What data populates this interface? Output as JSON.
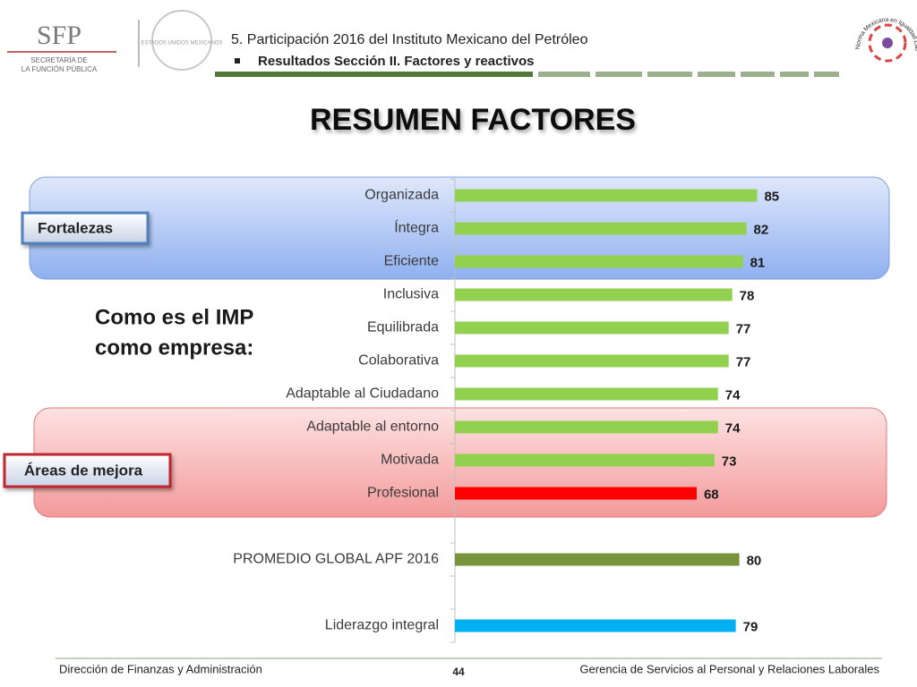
{
  "header": {
    "logo_text": "SFP",
    "logo_line1": "SECRETARÍA DE",
    "logo_line2": "LA FUNCIÓN PÚBLICA",
    "seal_text": "ESTADOS UNIDOS MEXICANOS",
    "section": "5. Participación 2016 del Instituto Mexicano del Petróleo",
    "subsection": "Resultados Sección II. Factores y reactivos",
    "badge_text": "Norma Mexicana en Igualdad Laboral y No Discriminación"
  },
  "chart_data": {
    "type": "bar",
    "orientation": "horizontal",
    "title": "RESUMEN FACTORES",
    "categories": [
      "Organizada",
      "Íntegra",
      "Eficiente",
      "Inclusiva",
      "Equilibrada",
      "Colaborativa",
      "Adaptable al Ciudadano",
      "Adaptable al entorno",
      "Motivada",
      "Profesional",
      null,
      "PROMEDIO GLOBAL APF   2016",
      null,
      "Liderazgo integral"
    ],
    "values": [
      85,
      82,
      81,
      78,
      77,
      77,
      74,
      74,
      73,
      68,
      null,
      80,
      null,
      79
    ],
    "colors": [
      "#92d050",
      "#92d050",
      "#92d050",
      "#92d050",
      "#92d050",
      "#92d050",
      "#92d050",
      "#92d050",
      "#92d050",
      "#ff0000",
      null,
      "#77933c",
      null,
      "#00b0f0"
    ],
    "annotations": {
      "strengths": "Fortalezas",
      "improvement": "Áreas de mejora",
      "question": [
        "Como es el IMP",
        "como empresa:"
      ]
    }
  },
  "footer": {
    "left": "Dirección de Finanzas y Administración",
    "page": "44",
    "right": "Gerencia de Servicios al Personal y Relaciones Laborales"
  }
}
